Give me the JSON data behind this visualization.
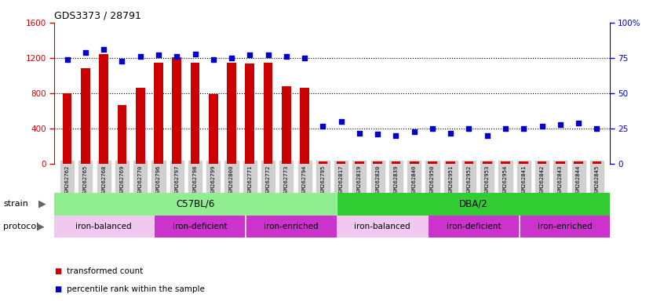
{
  "title": "GDS3373 / 28791",
  "samples": [
    "GSM262762",
    "GSM262765",
    "GSM262768",
    "GSM262769",
    "GSM262770",
    "GSM262796",
    "GSM262797",
    "GSM262798",
    "GSM262799",
    "GSM262800",
    "GSM262771",
    "GSM262772",
    "GSM262773",
    "GSM262794",
    "GSM262795",
    "GSM262817",
    "GSM262819",
    "GSM262820",
    "GSM262839",
    "GSM262840",
    "GSM262950",
    "GSM262951",
    "GSM262952",
    "GSM262953",
    "GSM262954",
    "GSM262841",
    "GSM262842",
    "GSM262843",
    "GSM262844",
    "GSM262845"
  ],
  "bar_values": [
    800,
    1080,
    1240,
    670,
    860,
    1150,
    1210,
    1150,
    790,
    1150,
    1140,
    1150,
    880,
    860,
    30,
    30,
    30,
    30,
    30,
    30,
    30,
    30,
    30,
    30,
    30,
    30,
    30,
    30,
    30,
    30
  ],
  "blue_values": [
    74,
    79,
    81,
    73,
    76,
    77,
    76,
    78,
    74,
    75,
    77,
    77,
    76,
    75,
    27,
    30,
    22,
    21,
    20,
    23,
    25,
    22,
    25,
    20,
    25,
    25,
    27,
    28,
    29,
    25
  ],
  "bar_color": "#cc0000",
  "blue_color": "#0000cc",
  "ylim_left": [
    0,
    1600
  ],
  "ylim_right": [
    0,
    100
  ],
  "yticks_left": [
    0,
    400,
    800,
    1200,
    1600
  ],
  "yticks_right": [
    0,
    25,
    50,
    75,
    100
  ],
  "ytick_labels_right": [
    "0",
    "25",
    "50",
    "75",
    "100%"
  ],
  "strain_groups": [
    {
      "label": "C57BL/6",
      "color": "#90ee90",
      "start": 0,
      "end": 15
    },
    {
      "label": "DBA/2",
      "color": "#32cd32",
      "start": 15,
      "end": 30
    }
  ],
  "protocol_groups": [
    {
      "label": "iron-balanced",
      "color": "#f0c8f0",
      "start": 0,
      "end": 5
    },
    {
      "label": "iron-deficient",
      "color": "#cc33cc",
      "start": 5,
      "end": 10
    },
    {
      "label": "iron-enriched",
      "color": "#cc33cc",
      "start": 10,
      "end": 15
    },
    {
      "label": "iron-balanced",
      "color": "#f0c8f0",
      "start": 15,
      "end": 20
    },
    {
      "label": "iron-deficient",
      "color": "#cc33cc",
      "start": 20,
      "end": 25
    },
    {
      "label": "iron-enriched",
      "color": "#cc33cc",
      "start": 25,
      "end": 30
    }
  ],
  "tick_bg_color": "#d0d0d0",
  "legend_items": [
    {
      "label": "transformed count",
      "color": "#cc0000"
    },
    {
      "label": "percentile rank within the sample",
      "color": "#0000cc"
    }
  ]
}
